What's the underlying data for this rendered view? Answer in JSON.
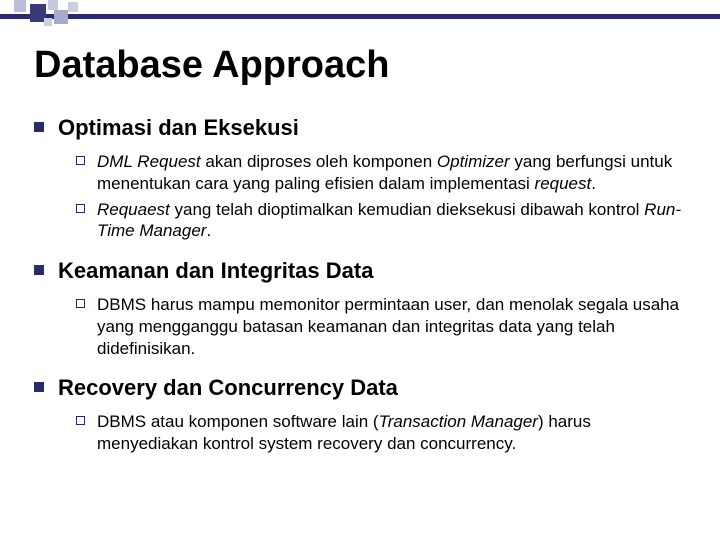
{
  "theme": {
    "accent": "#2a2a6a",
    "soft1": "#d8d8ea",
    "bg": "#ffffff",
    "text": "#000000"
  },
  "title": "Database Approach",
  "sections": [
    {
      "heading": "Optimasi dan Eksekusi",
      "items": [
        {
          "html": "<span class=\"ital\">DML Request</span> akan diproses oleh komponen <span class=\"ital\">Optimizer</span> yang berfungsi untuk menentukan cara yang paling efisien dalam implementasi <span class=\"ital\">request</span>."
        },
        {
          "html": "<span class=\"ital\">Requaest</span> yang telah dioptimalkan kemudian dieksekusi dibawah kontrol <span class=\"ital\">Run-Time Manager</span>."
        }
      ]
    },
    {
      "heading": "Keamanan dan Integritas Data",
      "items": [
        {
          "html": "DBMS harus mampu memonitor permintaan user, dan menolak segala usaha yang mengganggu batasan keamanan dan integritas data yang telah didefinisikan."
        }
      ]
    },
    {
      "heading": "Recovery dan Concurrency Data",
      "items": [
        {
          "html": "DBMS atau komponen software lain (<span class=\"ital\">Transaction Manager</span>) harus menyediakan kontrol system recovery dan concurrency."
        }
      ]
    }
  ]
}
